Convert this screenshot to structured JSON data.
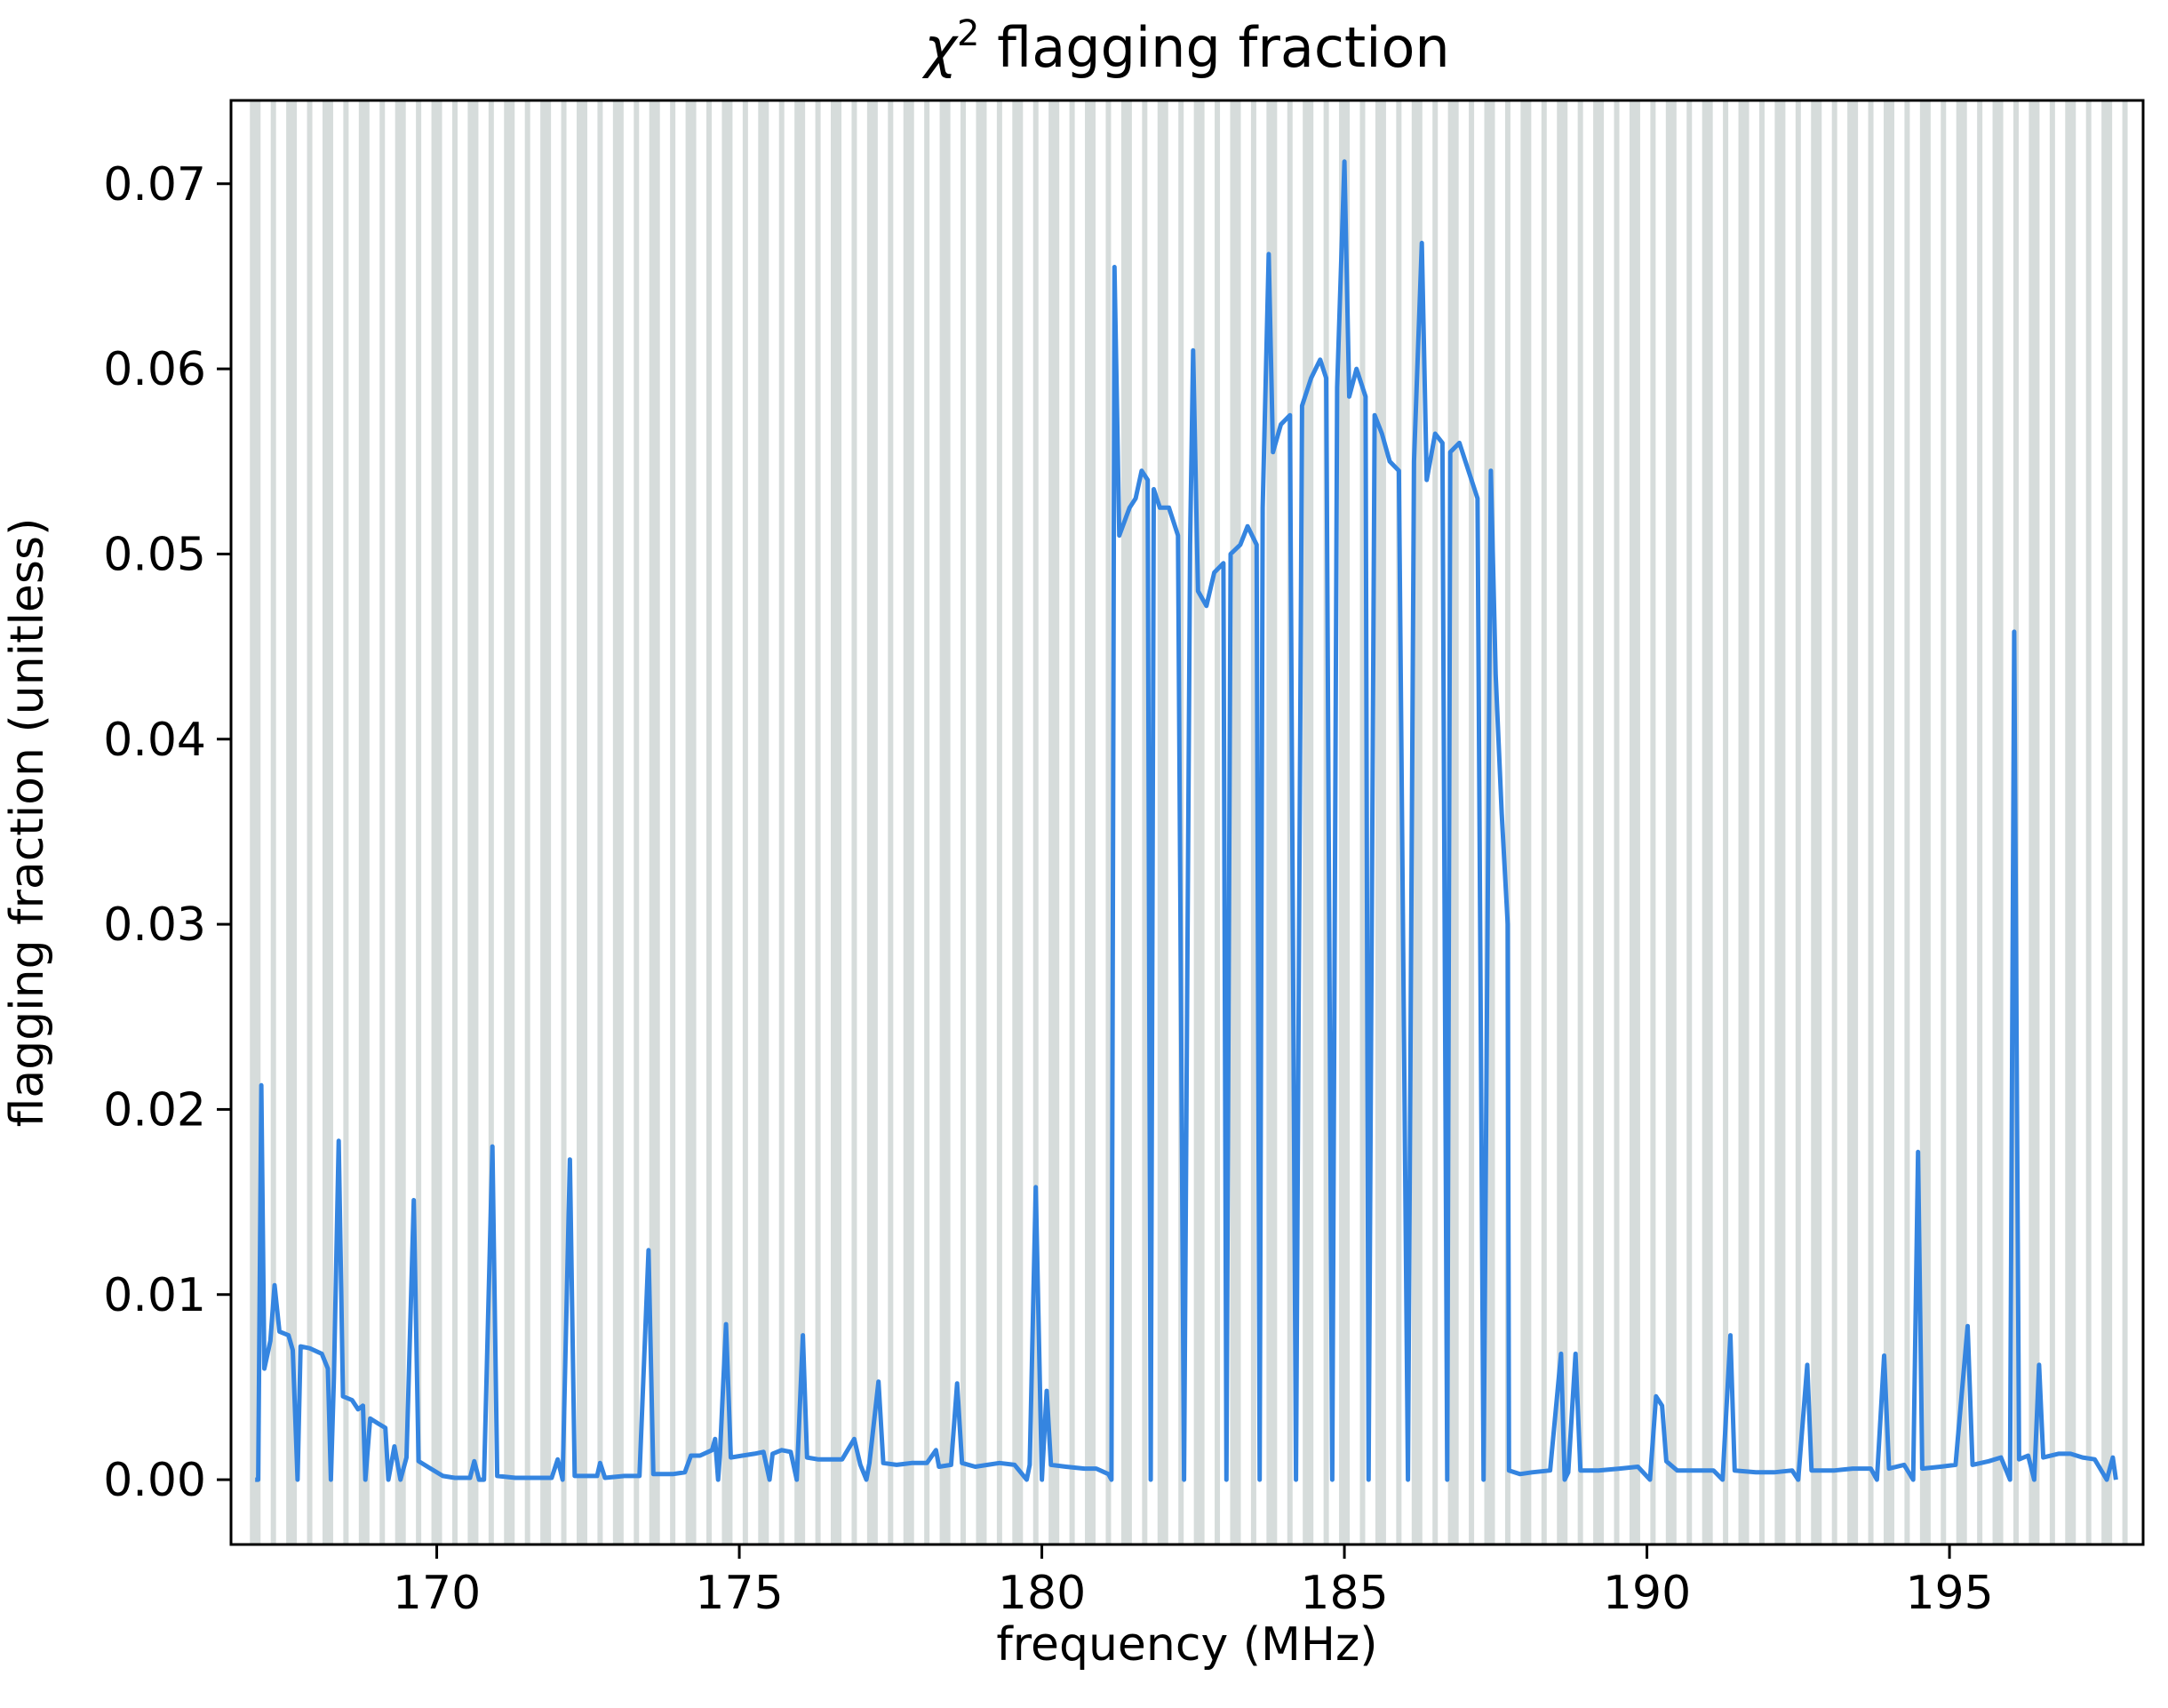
{
  "chart_data": {
    "type": "line",
    "title_symbol": "χ",
    "title_superscript": "2",
    "title_text": " flagging fraction",
    "xlabel": "frequency (MHz)",
    "ylabel": "flagging fraction (unitless)",
    "xlim": [
      166.6,
      198.2
    ],
    "ylim": [
      -0.0035,
      0.0745
    ],
    "x_ticks": [
      170,
      175,
      180,
      185,
      190,
      195
    ],
    "x_tick_labels": [
      "170",
      "175",
      "180",
      "185",
      "190",
      "195"
    ],
    "y_ticks": [
      0.0,
      0.01,
      0.02,
      0.03,
      0.04,
      0.05,
      0.06,
      0.07
    ],
    "y_tick_labels": [
      "0.00",
      "0.01",
      "0.02",
      "0.03",
      "0.04",
      "0.05",
      "0.06",
      "0.07"
    ],
    "grid": false,
    "legend": "none",
    "colors": {
      "line": "#3585e0",
      "flag_band": "#d6dcdb",
      "axes": "#000000"
    },
    "flagged_band_period_mhz": 0.6,
    "flagged_band_start_mhz": 167.0,
    "flagged_band_end_mhz": 197.9,
    "series": [
      {
        "values_sampled": [
          [
            167.0,
            0.0
          ],
          [
            167.05,
            0.0
          ],
          [
            167.1,
            0.0213
          ],
          [
            167.15,
            0.006
          ],
          [
            167.25,
            0.0075
          ],
          [
            167.32,
            0.0105
          ],
          [
            167.4,
            0.008
          ],
          [
            167.55,
            0.0078
          ],
          [
            167.62,
            0.007
          ],
          [
            167.7,
            0.0
          ],
          [
            167.75,
            0.0072
          ],
          [
            167.9,
            0.0071
          ],
          [
            168.1,
            0.0068
          ],
          [
            168.2,
            0.006
          ],
          [
            168.25,
            0.0
          ],
          [
            168.3,
            0.0055
          ],
          [
            168.38,
            0.0183
          ],
          [
            168.45,
            0.0045
          ],
          [
            168.6,
            0.0043
          ],
          [
            168.7,
            0.0038
          ],
          [
            168.78,
            0.004
          ],
          [
            168.82,
            0.0
          ],
          [
            168.9,
            0.0033
          ],
          [
            169.05,
            0.003
          ],
          [
            169.15,
            0.0028
          ],
          [
            169.2,
            0.0
          ],
          [
            169.3,
            0.0018
          ],
          [
            169.4,
            0.0
          ],
          [
            169.5,
            0.0012
          ],
          [
            169.62,
            0.0151
          ],
          [
            169.7,
            0.001
          ],
          [
            169.9,
            0.0006
          ],
          [
            170.1,
            0.0002
          ],
          [
            170.3,
            0.0001
          ],
          [
            170.55,
            0.0001
          ],
          [
            170.62,
            0.001
          ],
          [
            170.7,
            0.0
          ],
          [
            170.78,
            0.0
          ],
          [
            170.92,
            0.018
          ],
          [
            171.0,
            0.0002
          ],
          [
            171.3,
            0.0001
          ],
          [
            171.6,
            0.0001
          ],
          [
            171.9,
            0.0001
          ],
          [
            172.0,
            0.0011
          ],
          [
            172.08,
            0.0
          ],
          [
            172.2,
            0.0173
          ],
          [
            172.28,
            0.0002
          ],
          [
            172.5,
            0.0002
          ],
          [
            172.65,
            0.0002
          ],
          [
            172.7,
            0.0009
          ],
          [
            172.78,
            0.0001
          ],
          [
            173.1,
            0.0002
          ],
          [
            173.35,
            0.0002
          ],
          [
            173.5,
            0.0124
          ],
          [
            173.58,
            0.0003
          ],
          [
            173.9,
            0.0003
          ],
          [
            174.1,
            0.0004
          ],
          [
            174.2,
            0.0013
          ],
          [
            174.35,
            0.0013
          ],
          [
            174.55,
            0.0016
          ],
          [
            174.6,
            0.0022
          ],
          [
            174.65,
            0.0
          ],
          [
            174.68,
            0.0014
          ],
          [
            174.78,
            0.0084
          ],
          [
            174.86,
            0.0012
          ],
          [
            175.05,
            0.0013
          ],
          [
            175.25,
            0.0014
          ],
          [
            175.4,
            0.0015
          ],
          [
            175.5,
            0.0
          ],
          [
            175.55,
            0.0014
          ],
          [
            175.7,
            0.0016
          ],
          [
            175.85,
            0.0015
          ],
          [
            175.95,
            0.0
          ],
          [
            176.05,
            0.0078
          ],
          [
            176.12,
            0.0012
          ],
          [
            176.3,
            0.0011
          ],
          [
            176.5,
            0.0011
          ],
          [
            176.7,
            0.0011
          ],
          [
            176.9,
            0.0022
          ],
          [
            177.0,
            0.0008
          ],
          [
            177.1,
            0.0
          ],
          [
            177.15,
            0.0009
          ],
          [
            177.3,
            0.0053
          ],
          [
            177.38,
            0.0009
          ],
          [
            177.6,
            0.0008
          ],
          [
            177.85,
            0.0009
          ],
          [
            178.1,
            0.0009
          ],
          [
            178.25,
            0.0016
          ],
          [
            178.3,
            0.0007
          ],
          [
            178.5,
            0.0008
          ],
          [
            178.6,
            0.0052
          ],
          [
            178.68,
            0.0009
          ],
          [
            178.9,
            0.0007
          ],
          [
            179.1,
            0.0008
          ],
          [
            179.3,
            0.0009
          ],
          [
            179.55,
            0.0008
          ],
          [
            179.75,
            0.0
          ],
          [
            179.8,
            0.0008
          ],
          [
            179.9,
            0.0158
          ],
          [
            180.0,
            0.0
          ],
          [
            180.08,
            0.0048
          ],
          [
            180.15,
            0.0008
          ],
          [
            180.4,
            0.0007
          ],
          [
            180.7,
            0.0006
          ],
          [
            180.9,
            0.0006
          ],
          [
            181.1,
            0.0003
          ],
          [
            181.15,
            0.0
          ],
          [
            181.2,
            0.0655
          ],
          [
            181.28,
            0.051
          ],
          [
            181.45,
            0.0525
          ],
          [
            181.55,
            0.053
          ],
          [
            181.65,
            0.0545
          ],
          [
            181.75,
            0.054
          ],
          [
            181.8,
            0.0
          ],
          [
            181.85,
            0.0535
          ],
          [
            181.95,
            0.0525
          ],
          [
            182.1,
            0.0525
          ],
          [
            182.25,
            0.051
          ],
          [
            182.35,
            0.0
          ],
          [
            182.45,
            0.0505
          ],
          [
            182.5,
            0.061
          ],
          [
            182.58,
            0.048
          ],
          [
            182.72,
            0.0472
          ],
          [
            182.85,
            0.049
          ],
          [
            183.0,
            0.0495
          ],
          [
            183.05,
            0.0
          ],
          [
            183.12,
            0.05
          ],
          [
            183.28,
            0.0505
          ],
          [
            183.4,
            0.0515
          ],
          [
            183.55,
            0.0505
          ],
          [
            183.6,
            0.0
          ],
          [
            183.65,
            0.0525
          ],
          [
            183.75,
            0.0662
          ],
          [
            183.82,
            0.0555
          ],
          [
            183.95,
            0.057
          ],
          [
            184.1,
            0.0575
          ],
          [
            184.2,
            0.0
          ],
          [
            184.3,
            0.058
          ],
          [
            184.45,
            0.0595
          ],
          [
            184.6,
            0.0605
          ],
          [
            184.7,
            0.0595
          ],
          [
            184.8,
            0.0
          ],
          [
            184.88,
            0.059
          ],
          [
            185.0,
            0.0712
          ],
          [
            185.08,
            0.0585
          ],
          [
            185.2,
            0.06
          ],
          [
            185.35,
            0.0585
          ],
          [
            185.4,
            0.0
          ],
          [
            185.5,
            0.0575
          ],
          [
            185.62,
            0.0565
          ],
          [
            185.75,
            0.055
          ],
          [
            185.9,
            0.0545
          ],
          [
            186.05,
            0.0
          ],
          [
            186.15,
            0.055
          ],
          [
            186.28,
            0.0668
          ],
          [
            186.36,
            0.054
          ],
          [
            186.5,
            0.0565
          ],
          [
            186.62,
            0.056
          ],
          [
            186.7,
            0.0
          ],
          [
            186.75,
            0.0555
          ],
          [
            186.9,
            0.056
          ],
          [
            187.05,
            0.0545
          ],
          [
            187.2,
            0.053
          ],
          [
            187.3,
            0.0
          ],
          [
            187.42,
            0.0545
          ],
          [
            187.5,
            0.0435
          ],
          [
            187.6,
            0.036
          ],
          [
            187.7,
            0.03
          ],
          [
            187.72,
            0.0005
          ],
          [
            187.9,
            0.0003
          ],
          [
            188.1,
            0.0004
          ],
          [
            188.4,
            0.0005
          ],
          [
            188.58,
            0.0068
          ],
          [
            188.64,
            0.0
          ],
          [
            188.7,
            0.0004
          ],
          [
            188.82,
            0.0068
          ],
          [
            188.9,
            0.0005
          ],
          [
            189.2,
            0.0005
          ],
          [
            189.55,
            0.0006
          ],
          [
            189.85,
            0.0007
          ],
          [
            190.05,
            0.0
          ],
          [
            190.15,
            0.0045
          ],
          [
            190.25,
            0.004
          ],
          [
            190.32,
            0.001
          ],
          [
            190.5,
            0.0005
          ],
          [
            190.8,
            0.0005
          ],
          [
            191.1,
            0.0005
          ],
          [
            191.25,
            0.0
          ],
          [
            191.38,
            0.0078
          ],
          [
            191.45,
            0.0005
          ],
          [
            191.8,
            0.0004
          ],
          [
            192.1,
            0.0004
          ],
          [
            192.4,
            0.0005
          ],
          [
            192.5,
            0.0
          ],
          [
            192.65,
            0.0062
          ],
          [
            192.72,
            0.0005
          ],
          [
            193.1,
            0.0005
          ],
          [
            193.4,
            0.0006
          ],
          [
            193.7,
            0.0006
          ],
          [
            193.8,
            0.0
          ],
          [
            193.92,
            0.0067
          ],
          [
            194.0,
            0.0006
          ],
          [
            194.25,
            0.0008
          ],
          [
            194.4,
            0.0
          ],
          [
            194.48,
            0.0177
          ],
          [
            194.55,
            0.0006
          ],
          [
            194.85,
            0.0007
          ],
          [
            195.1,
            0.0008
          ],
          [
            195.3,
            0.0083
          ],
          [
            195.38,
            0.0008
          ],
          [
            195.65,
            0.001
          ],
          [
            195.85,
            0.0012
          ],
          [
            196.0,
            0.0
          ],
          [
            196.07,
            0.0458
          ],
          [
            196.15,
            0.0011
          ],
          [
            196.3,
            0.0013
          ],
          [
            196.4,
            0.0
          ],
          [
            196.48,
            0.0062
          ],
          [
            196.55,
            0.0012
          ],
          [
            196.8,
            0.0014
          ],
          [
            197.0,
            0.0014
          ],
          [
            197.2,
            0.0012
          ],
          [
            197.4,
            0.0011
          ],
          [
            197.6,
            0.0
          ],
          [
            197.7,
            0.0012
          ],
          [
            197.75,
            0.0
          ]
        ]
      }
    ]
  }
}
